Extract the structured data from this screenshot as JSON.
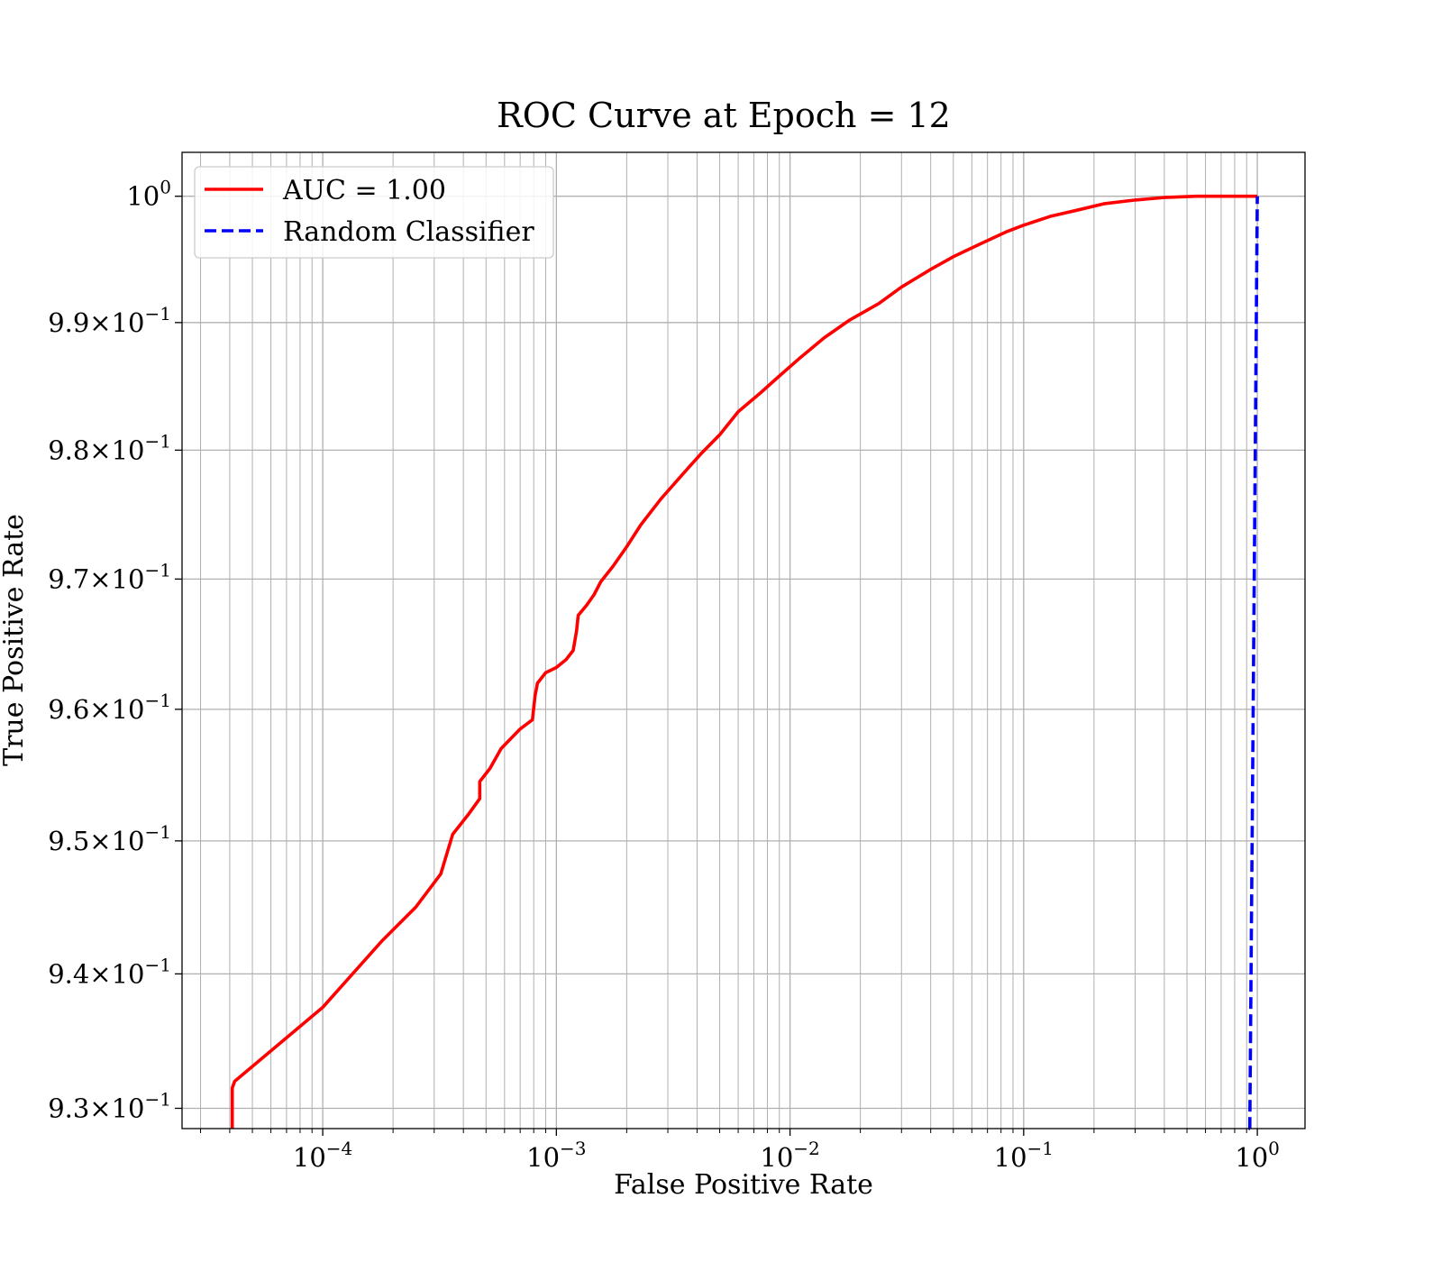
{
  "chart_data": {
    "type": "line",
    "title": "ROC Curve at Epoch = 12",
    "xlabel": "False Positive Rate",
    "ylabel": "True Positive Rate",
    "x_scale": "log",
    "y_scale": "log",
    "xlim": [
      2.5e-05,
      1.6
    ],
    "ylim": [
      0.9285,
      1.0035
    ],
    "grid": true,
    "grid_minor": true,
    "legend_position": "top-left",
    "x_ticks": [
      {
        "value": 0.0001,
        "base": "10",
        "exp": "−4"
      },
      {
        "value": 0.001,
        "base": "10",
        "exp": "−3"
      },
      {
        "value": 0.01,
        "base": "10",
        "exp": "−2"
      },
      {
        "value": 0.1,
        "base": "10",
        "exp": "−1"
      },
      {
        "value": 1,
        "base": "10",
        "exp": "0"
      }
    ],
    "y_ticks": [
      {
        "value": 0.93,
        "base": "9.3×10",
        "exp": "−1"
      },
      {
        "value": 0.94,
        "base": "9.4×10",
        "exp": "−1"
      },
      {
        "value": 0.95,
        "base": "9.5×10",
        "exp": "−1"
      },
      {
        "value": 0.96,
        "base": "9.6×10",
        "exp": "−1"
      },
      {
        "value": 0.97,
        "base": "9.7×10",
        "exp": "−1"
      },
      {
        "value": 0.98,
        "base": "9.8×10",
        "exp": "−1"
      },
      {
        "value": 0.99,
        "base": "9.9×10",
        "exp": "−1"
      },
      {
        "value": 1.0,
        "base": "10",
        "exp": "0"
      }
    ],
    "series": [
      {
        "name": "AUC = 1.00",
        "color": "#ff0000",
        "style": "solid",
        "x": [
          4.1e-05,
          4.1e-05,
          4.2e-05,
          0.0001,
          0.00018,
          0.00025,
          0.00032,
          0.00036,
          0.00042,
          0.00047,
          0.00047,
          0.00052,
          0.00058,
          0.0007,
          0.00079,
          0.00081,
          0.00083,
          0.0009,
          0.001,
          0.0011,
          0.00118,
          0.00122,
          0.00124,
          0.00135,
          0.00145,
          0.00155,
          0.00175,
          0.002,
          0.0023,
          0.0028,
          0.0035,
          0.0042,
          0.005,
          0.006,
          0.0075,
          0.009,
          0.011,
          0.014,
          0.018,
          0.024,
          0.03,
          0.04,
          0.05,
          0.065,
          0.085,
          0.1,
          0.13,
          0.17,
          0.22,
          0.3,
          0.4,
          0.55,
          0.8,
          1.0
        ],
        "y": [
          0.9285,
          0.9315,
          0.932,
          0.9375,
          0.9425,
          0.945,
          0.9475,
          0.9505,
          0.952,
          0.9532,
          0.9545,
          0.9555,
          0.957,
          0.9585,
          0.9592,
          0.961,
          0.962,
          0.9628,
          0.9632,
          0.9638,
          0.9645,
          0.966,
          0.9672,
          0.968,
          0.9688,
          0.9698,
          0.971,
          0.9725,
          0.9742,
          0.9762,
          0.9782,
          0.9798,
          0.9812,
          0.983,
          0.9845,
          0.9858,
          0.9872,
          0.9888,
          0.9902,
          0.9915,
          0.9928,
          0.9942,
          0.9952,
          0.9962,
          0.9972,
          0.9977,
          0.9984,
          0.9989,
          0.9994,
          0.9997,
          0.9999,
          1.0,
          1.0,
          1.0
        ]
      },
      {
        "name": "Random Classifier",
        "color": "#0000ff",
        "style": "dashed",
        "x": [
          0.93,
          0.9285,
          1.0
        ],
        "y": [
          0.9285,
          0.9285,
          1.0
        ]
      }
    ]
  }
}
